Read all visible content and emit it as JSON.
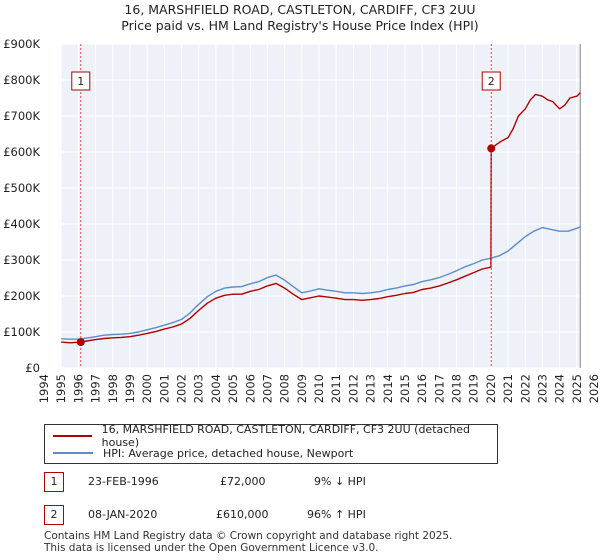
{
  "chart_data": {
    "type": "line",
    "title": "16, MARSHFIELD ROAD, CASTLETON, CARDIFF, CF3 2UU",
    "subtitle": "Price paid vs. HM Land Registry's House Price Index (HPI)",
    "xlim": [
      1994,
      2026
    ],
    "ylim": [
      0,
      900000
    ],
    "x_ticks": [
      "1994",
      "1995",
      "1996",
      "1997",
      "1998",
      "1999",
      "2000",
      "2001",
      "2002",
      "2003",
      "2004",
      "2005",
      "2006",
      "2007",
      "2008",
      "2009",
      "2010",
      "2011",
      "2012",
      "2013",
      "2014",
      "2015",
      "2016",
      "2017",
      "2018",
      "2019",
      "2020",
      "2021",
      "2022",
      "2023",
      "2024",
      "2025",
      "2026"
    ],
    "y_ticks": [
      {
        "value": 0,
        "label": "£0"
      },
      {
        "value": 100000,
        "label": "£100K"
      },
      {
        "value": 200000,
        "label": "£200K"
      },
      {
        "value": 300000,
        "label": "£300K"
      },
      {
        "value": 400000,
        "label": "£400K"
      },
      {
        "value": 500000,
        "label": "£500K"
      },
      {
        "value": 600000,
        "label": "£600K"
      },
      {
        "value": 700000,
        "label": "£700K"
      },
      {
        "value": 800000,
        "label": "£800K"
      },
      {
        "value": 900000,
        "label": "£900K"
      }
    ],
    "grid": true,
    "series": [
      {
        "name": "16, MARSHFIELD ROAD, CASTLETON, CARDIFF, CF3 2UU (detached house)",
        "color": "#b00000",
        "x": [
          1995.0,
          1995.5,
          1996.14,
          1996.5,
          1997.0,
          1997.5,
          1998.0,
          1998.5,
          1999.0,
          1999.5,
          2000.0,
          2000.5,
          2001.0,
          2001.5,
          2002.0,
          2002.5,
          2003.0,
          2003.5,
          2004.0,
          2004.5,
          2005.0,
          2005.5,
          2006.0,
          2006.5,
          2007.0,
          2007.5,
          2008.0,
          2008.5,
          2009.0,
          2009.5,
          2010.0,
          2010.5,
          2011.0,
          2011.5,
          2012.0,
          2012.5,
          2013.0,
          2013.5,
          2014.0,
          2014.5,
          2015.0,
          2015.5,
          2016.0,
          2016.5,
          2017.0,
          2017.5,
          2018.0,
          2018.5,
          2019.0,
          2019.5,
          2020.0,
          2020.02,
          2020.3,
          2020.6,
          2021.0,
          2021.3,
          2021.6,
          2022.0,
          2022.3,
          2022.6,
          2023.0,
          2023.3,
          2023.6,
          2024.0,
          2024.3,
          2024.6,
          2025.0,
          2025.2
        ],
        "y": [
          72000,
          70000,
          72000,
          75000,
          79000,
          82000,
          84000,
          85000,
          87000,
          91000,
          96000,
          101000,
          108000,
          114000,
          122000,
          138000,
          160000,
          180000,
          194000,
          202000,
          205000,
          205000,
          213000,
          218000,
          228000,
          235000,
          222000,
          205000,
          190000,
          195000,
          200000,
          197000,
          194000,
          190000,
          190000,
          188000,
          190000,
          193000,
          198000,
          202000,
          207000,
          210000,
          218000,
          222000,
          228000,
          236000,
          245000,
          255000,
          265000,
          275000,
          280000,
          610000,
          620000,
          630000,
          640000,
          665000,
          700000,
          720000,
          745000,
          760000,
          755000,
          745000,
          740000,
          720000,
          730000,
          750000,
          755000,
          765000
        ]
      },
      {
        "name": "HPI: Average price, detached house, Newport",
        "color": "#5b8ec9",
        "x": [
          1995.0,
          1995.5,
          1996.0,
          1996.5,
          1997.0,
          1997.5,
          1998.0,
          1998.5,
          1999.0,
          1999.5,
          2000.0,
          2000.5,
          2001.0,
          2001.5,
          2002.0,
          2002.5,
          2003.0,
          2003.5,
          2004.0,
          2004.5,
          2005.0,
          2005.5,
          2006.0,
          2006.5,
          2007.0,
          2007.5,
          2008.0,
          2008.5,
          2009.0,
          2009.5,
          2010.0,
          2010.5,
          2011.0,
          2011.5,
          2012.0,
          2012.5,
          2013.0,
          2013.5,
          2014.0,
          2014.5,
          2015.0,
          2015.5,
          2016.0,
          2016.5,
          2017.0,
          2017.5,
          2018.0,
          2018.5,
          2019.0,
          2019.5,
          2020.0,
          2020.5,
          2021.0,
          2021.5,
          2022.0,
          2022.5,
          2023.0,
          2023.5,
          2024.0,
          2024.5,
          2025.0,
          2025.2
        ],
        "y": [
          81000,
          80000,
          80000,
          83000,
          87000,
          91000,
          93000,
          94000,
          96000,
          100000,
          106000,
          112000,
          119000,
          126000,
          135000,
          153000,
          177000,
          198000,
          213000,
          222000,
          225000,
          226000,
          234000,
          240000,
          251000,
          258000,
          244000,
          226000,
          209000,
          214000,
          220000,
          216000,
          213000,
          209000,
          209000,
          207000,
          209000,
          212000,
          218000,
          222000,
          228000,
          232000,
          240000,
          245000,
          251000,
          260000,
          270000,
          281000,
          290000,
          300000,
          305000,
          312000,
          325000,
          345000,
          365000,
          380000,
          390000,
          385000,
          380000,
          380000,
          388000,
          392000
        ]
      }
    ],
    "annotations": [
      {
        "label": "1",
        "x": 1996.14,
        "y": 72000
      },
      {
        "label": "2",
        "x": 2020.02,
        "y": 610000
      }
    ]
  },
  "legend": {
    "items": [
      {
        "label": "16, MARSHFIELD ROAD, CASTLETON, CARDIFF, CF3 2UU (detached house)",
        "color": "#b00000"
      },
      {
        "label": "HPI: Average price, detached house, Newport",
        "color": "#5b8ec9"
      }
    ]
  },
  "sales": [
    {
      "num": "1",
      "date": "23-FEB-1996",
      "price": "£72,000",
      "hpi": "9% ↓ HPI"
    },
    {
      "num": "2",
      "date": "08-JAN-2020",
      "price": "£610,000",
      "hpi": "96% ↑ HPI"
    }
  ],
  "footer": {
    "line1": "Contains HM Land Registry data © Crown copyright and database right 2025.",
    "line2": "This data is licensed under the Open Government Licence v3.0."
  }
}
